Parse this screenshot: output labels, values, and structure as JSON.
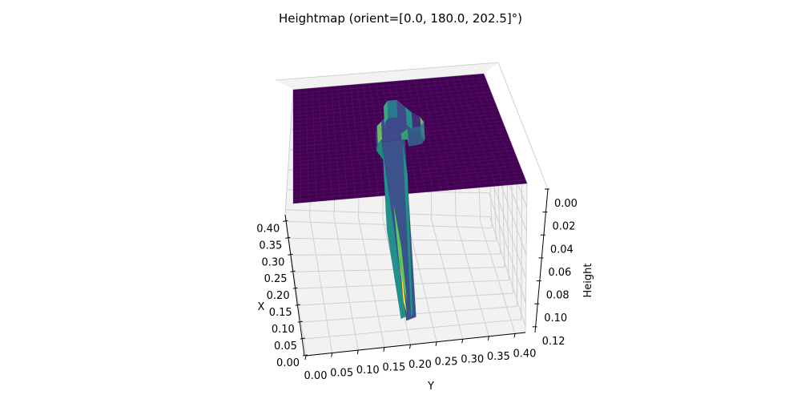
{
  "chart_data": {
    "type": "surface3d",
    "title": "Heightmap (orient=[0.0, 180.0, 202.5]°)",
    "xlabel": "X",
    "ylabel": "Y",
    "zlabel": "Height",
    "x_ticks": [
      "0.00",
      "0.05",
      "0.10",
      "0.15",
      "0.20",
      "0.25",
      "0.30",
      "0.35",
      "0.40"
    ],
    "y_ticks": [
      "0.00",
      "0.05",
      "0.10",
      "0.15",
      "0.20",
      "0.25",
      "0.30",
      "0.35",
      "0.40"
    ],
    "z_ticks": [
      "0.00",
      "0.02",
      "0.04",
      "0.06",
      "0.08",
      "0.10",
      "0.12"
    ],
    "xlim": [
      0.0,
      0.42
    ],
    "ylim": [
      0.0,
      0.42
    ],
    "zlim": [
      0.0,
      0.125
    ],
    "z_inverted": true,
    "colormap": "viridis",
    "colors": {
      "plateau": "#440154",
      "low": "#3b528b",
      "mid": "#21918c",
      "high": "#5ec962",
      "peak": "#fde725",
      "pane": "#f2f2f2",
      "grid": "#d0d0d0"
    },
    "plateau_height": 0.0,
    "feature": {
      "description_free": true,
      "peak_height": 0.12
    },
    "grid": true
  }
}
